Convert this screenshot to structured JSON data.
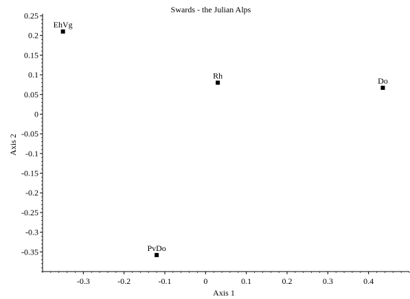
{
  "chart_data": {
    "type": "scatter",
    "title": "Swards - the Julian Alps",
    "xlabel": "Axis 1",
    "ylabel": "Axis 2",
    "xlim": [
      -0.4,
      0.5
    ],
    "ylim": [
      -0.4,
      0.25
    ],
    "xticks": [
      -0.3,
      -0.2,
      -0.1,
      0,
      0.1,
      0.2,
      0.3,
      0.4
    ],
    "xtick_labels": [
      "-0.3",
      "-0.2",
      "-0.1",
      "0",
      "0.1",
      "0.2",
      "0.3",
      "0.4"
    ],
    "yticks": [
      0.25,
      0.2,
      0.15,
      0.1,
      0.05,
      0,
      -0.05,
      -0.1,
      -0.15,
      -0.2,
      -0.25,
      -0.3,
      -0.35
    ],
    "ytick_labels": [
      "0.25",
      "0.2",
      "0.15",
      "0.1",
      "0.05",
      "0",
      "-0.05",
      "-0.1",
      "-0.15",
      "-0.2",
      "-0.25",
      "-0.3",
      "-0.35"
    ],
    "grid": false,
    "legend": "none",
    "points": [
      {
        "label": "EhVg",
        "x": -0.35,
        "y": 0.21
      },
      {
        "label": "Rh",
        "x": 0.03,
        "y": 0.08
      },
      {
        "label": "Do",
        "x": 0.435,
        "y": 0.067
      },
      {
        "label": "PvDo",
        "x": -0.12,
        "y": -0.358
      }
    ]
  }
}
